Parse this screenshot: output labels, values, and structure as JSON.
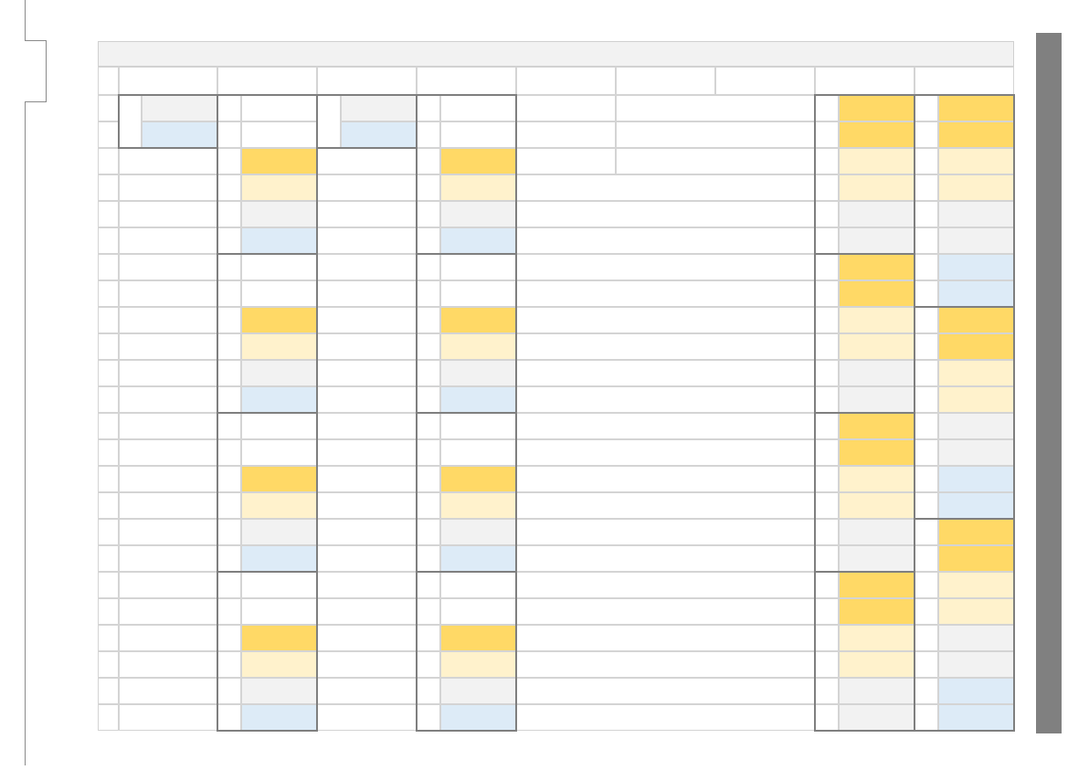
{
  "sheet": {
    "title_bar": "",
    "colors": {
      "accent_gold": "#ffd966",
      "light_gold": "#fff2cc",
      "light_gray": "#f2f2f2",
      "light_blue": "#ddebf7",
      "grid_line": "#d4d4d4",
      "block_border": "#7f7f7f",
      "scrollbar": "#808080"
    }
  }
}
